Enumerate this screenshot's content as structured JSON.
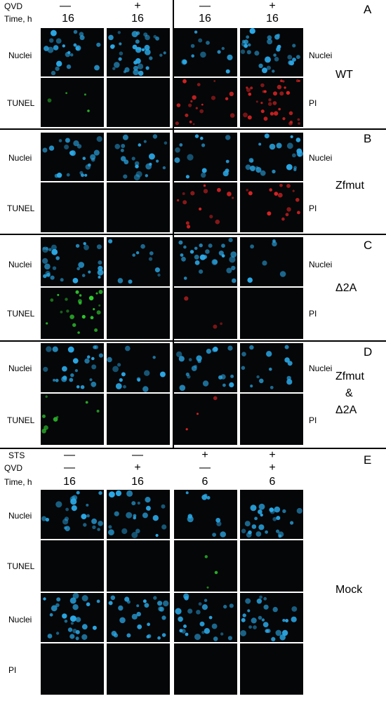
{
  "panels": {
    "A": {
      "letter": "A",
      "label": "WT"
    },
    "B": {
      "letter": "B",
      "label": "Zfmut"
    },
    "C": {
      "letter": "C",
      "label": "Δ2A"
    },
    "D": {
      "letter": "D",
      "label_lines": [
        "Zfmut",
        "&",
        "Δ2A"
      ]
    },
    "E": {
      "letter": "E",
      "label": "Mock"
    }
  },
  "header_top": {
    "qvd_label": "QVD",
    "time_label": "Time, h",
    "qvd": [
      "—",
      "+",
      "—",
      "+"
    ],
    "time": [
      "16",
      "16",
      "16",
      "16"
    ]
  },
  "header_e": {
    "sts_label": "STS",
    "qvd_label": "QVD",
    "time_label": "Time, h",
    "sts": [
      "—",
      "—",
      "+",
      "+"
    ],
    "qvd": [
      "—",
      "+",
      "—",
      "+"
    ],
    "time": [
      "16",
      "16",
      "6",
      "6"
    ]
  },
  "row_labels": {
    "nuclei": "Nuclei",
    "tunel": "TUNEL",
    "pi": "PI"
  },
  "colors": {
    "nuclei": "#2aa8e6",
    "tunel": "#2fd12f",
    "pi": "#e02424",
    "background": "#050608"
  }
}
